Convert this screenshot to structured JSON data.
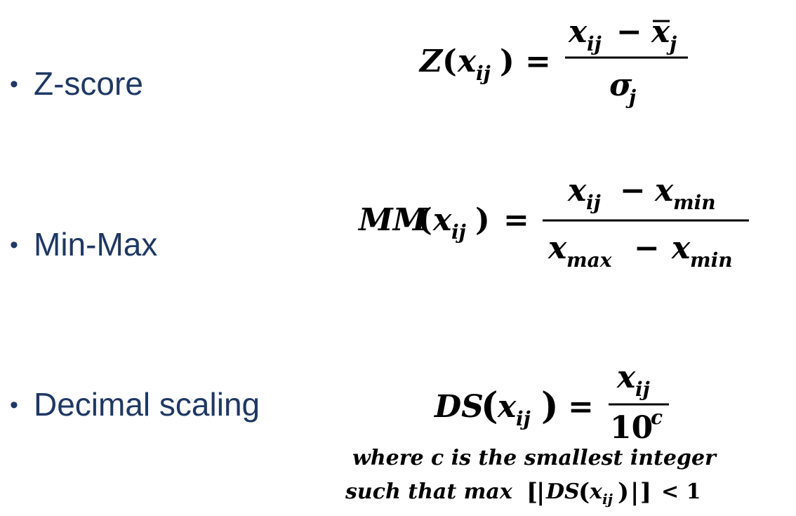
{
  "bullets": [
    {
      "label": "Z-score"
    },
    {
      "label": "Min-Max"
    },
    {
      "label": "Decimal scaling"
    }
  ],
  "formulas": {
    "zscore": {
      "lhs_func": "Z",
      "lhs_var": "x",
      "lhs_sub": "ij",
      "num_var1": "x",
      "num_sub1": "ij",
      "num_minus": "−",
      "num_var2": "x",
      "num_sub2": "j",
      "den_var": "σ",
      "den_sub": "j"
    },
    "minmax": {
      "lhs_func": "MM",
      "lhs_var": "x",
      "lhs_sub": "ij",
      "num_var1": "x",
      "num_sub1": "ij",
      "num_var2": "x",
      "num_sub2": "min",
      "den_var1": "x",
      "den_sub1": "max",
      "den_var2": "x",
      "den_sub2": "min"
    },
    "decimal": {
      "lhs_func": "DS",
      "lhs_var": "x",
      "lhs_sub": "ij",
      "num_var": "x",
      "num_sub": "ij",
      "den_base": "10",
      "den_exp": "c",
      "note_line1": "where c is the smallest integer",
      "note_line2_prefix": "such that max",
      "note_func": "DS",
      "note_var": "x",
      "note_sub": "ij",
      "note_rel": "< 1"
    }
  },
  "colors": {
    "bullet_text": "#1f3864",
    "formula_text": "#000000"
  }
}
